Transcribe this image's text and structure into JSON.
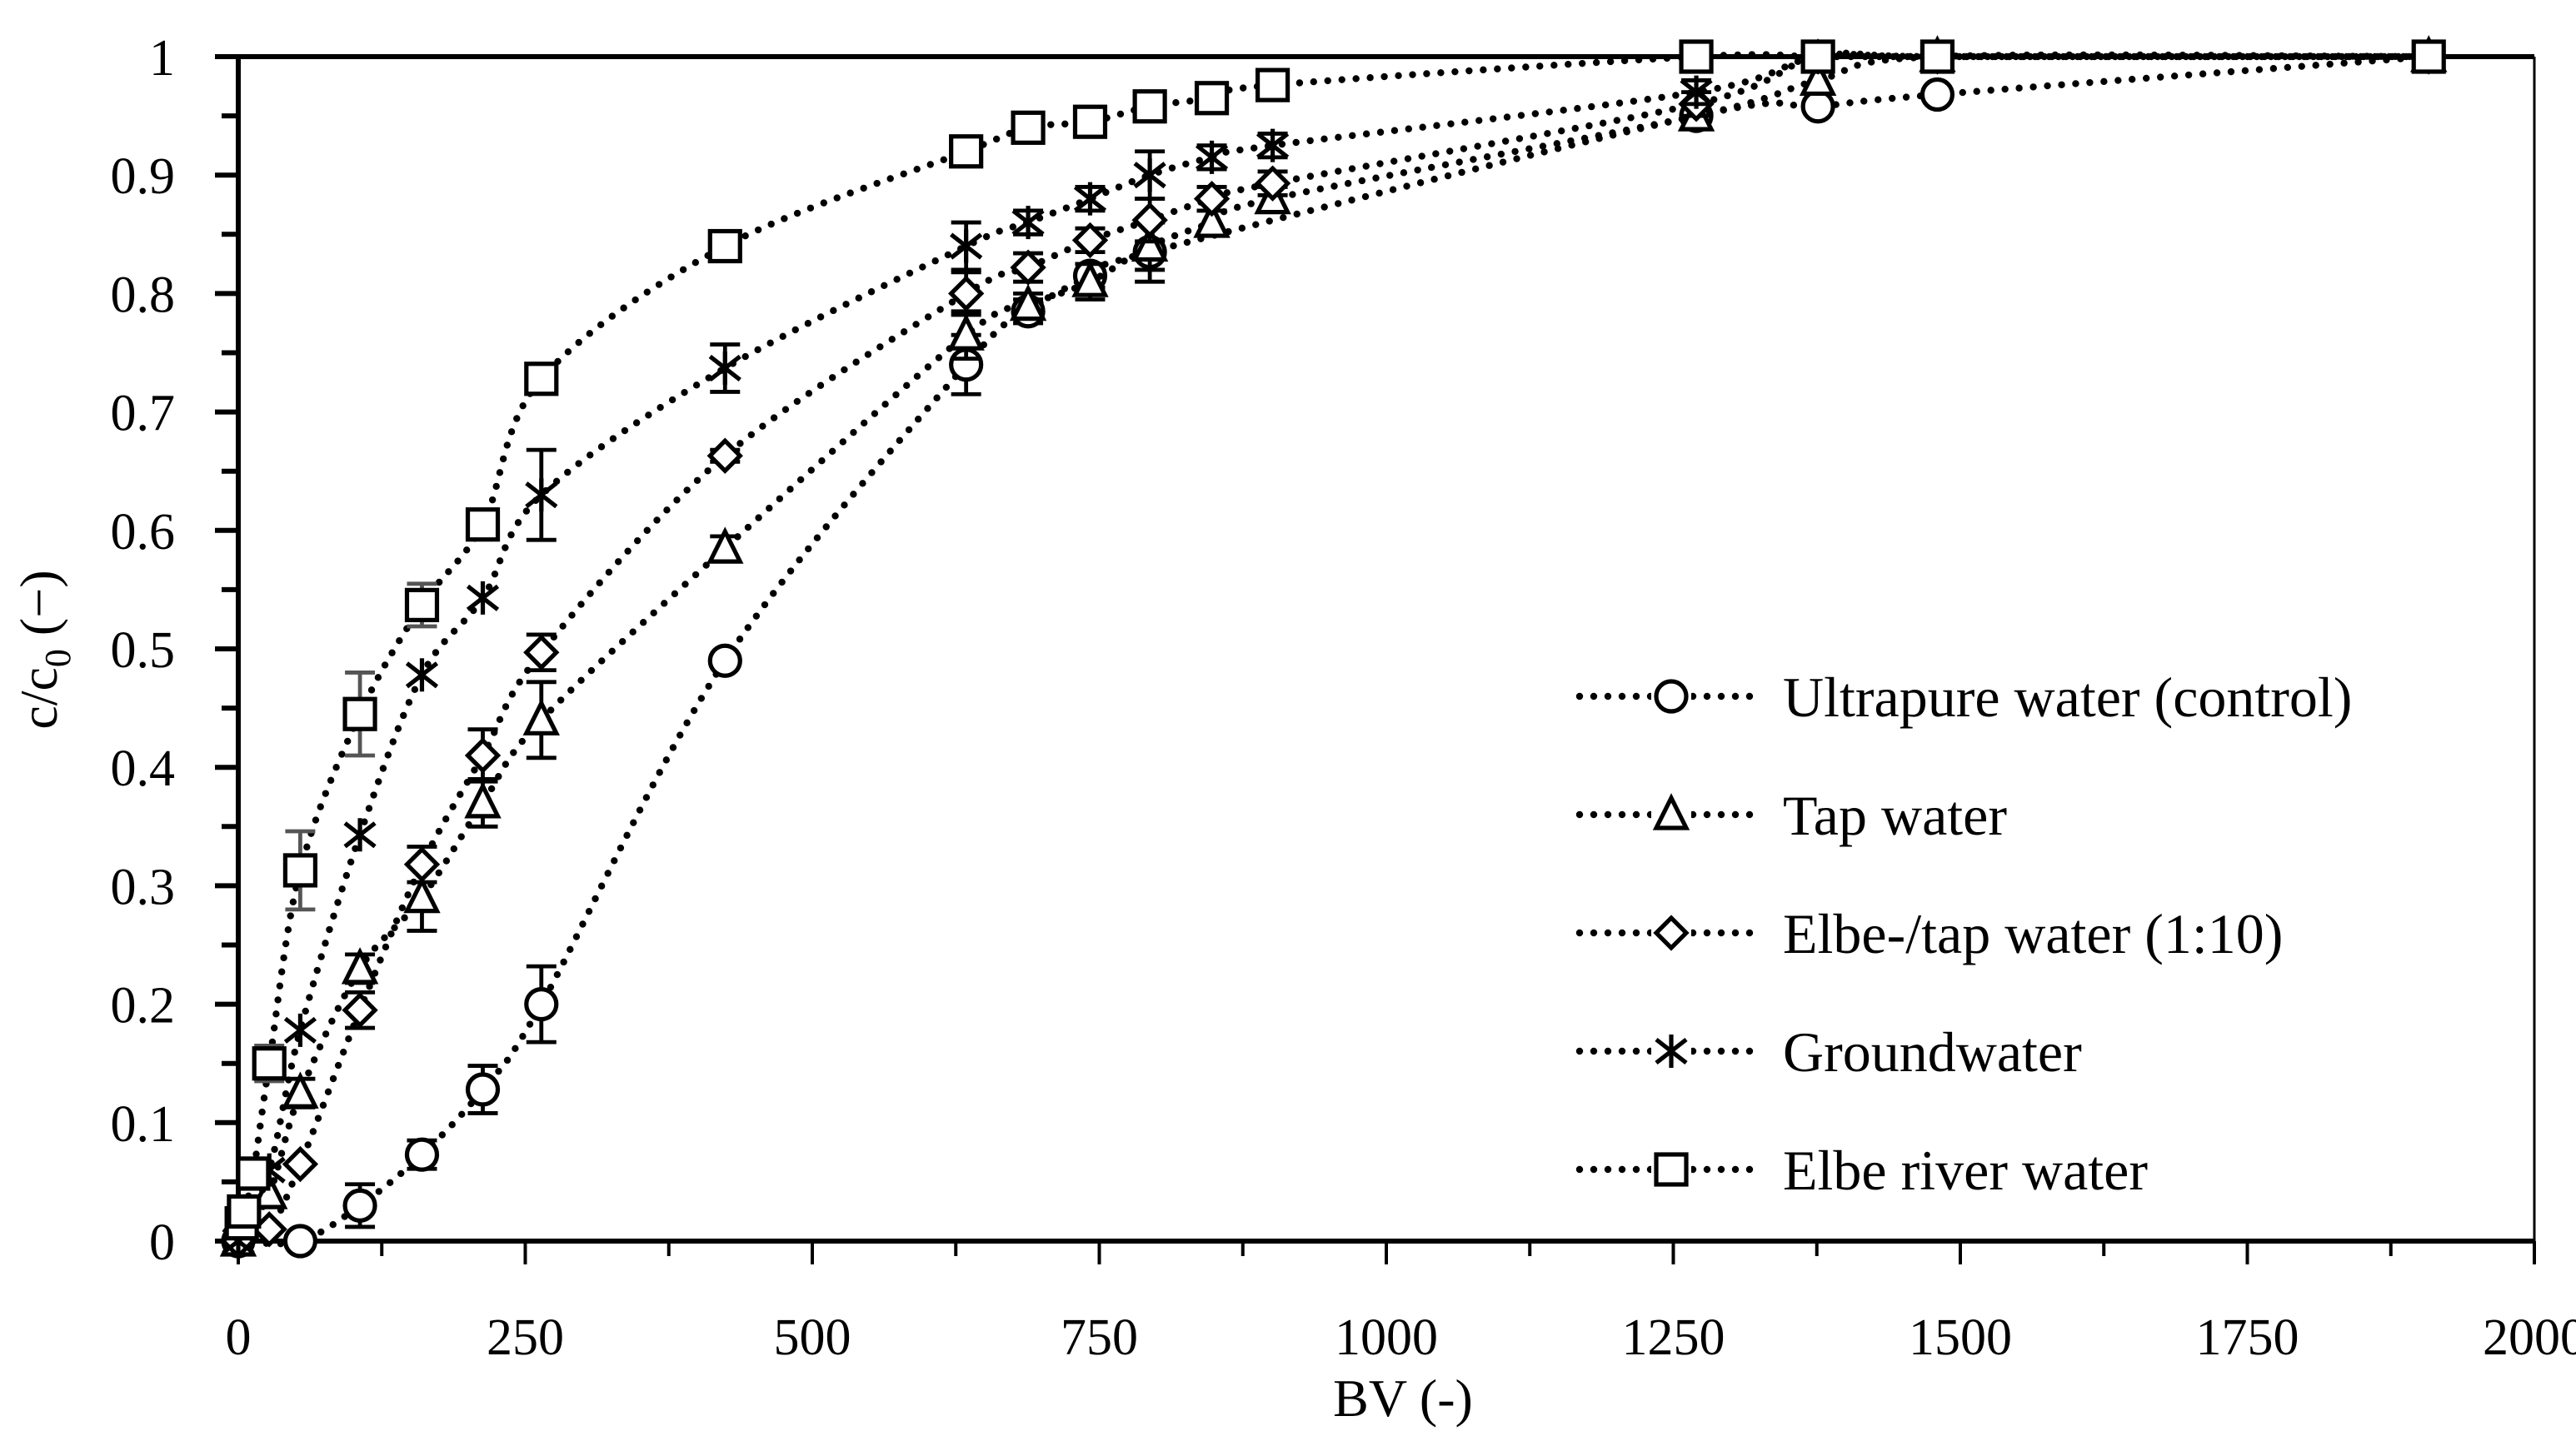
{
  "chart_data": {
    "type": "scatter",
    "title": "",
    "xlabel": "BV (-)",
    "ylabel": "c/c0 (−)",
    "ylabel_parts": {
      "main": "c/c",
      "subscript": "0",
      "suffix": " (−)"
    },
    "xlim": [
      0,
      2000
    ],
    "ylim": [
      0,
      1
    ],
    "x_ticks": [
      0,
      250,
      500,
      750,
      1000,
      1250,
      1500,
      1750,
      2000
    ],
    "x_tick_labels": [
      "0",
      "250",
      "500",
      "750",
      "1000",
      "1250",
      "1500",
      "1750",
      "2000"
    ],
    "y_ticks": [
      0,
      0.1,
      0.2,
      0.3,
      0.4,
      0.5,
      0.6,
      0.7,
      0.8,
      0.9,
      1
    ],
    "y_tick_labels": [
      "0",
      "0.1",
      "0.2",
      "0.3",
      "0.4",
      "0.5",
      "0.6",
      "0.7",
      "0.8",
      "0.9",
      "1"
    ],
    "grid": false,
    "legend_position": "lower right (inside plot)",
    "line_style": "dotted, black, with error bars",
    "series": [
      {
        "name": "Ultrapure water (control)",
        "marker": "circle",
        "x": [
          0,
          54,
          106,
          160,
          213,
          264,
          424,
          634,
          688,
          742,
          794,
          1270,
          1376,
          1480,
          1908
        ],
        "y": [
          0.0,
          0.0,
          0.03,
          0.073,
          0.128,
          0.2,
          0.49,
          0.74,
          0.785,
          0.815,
          0.835,
          0.95,
          0.958,
          0.968,
          1.0
        ],
        "err": [
          0,
          0,
          0.018,
          0.012,
          0.02,
          0.032,
          0,
          0.025,
          0.01,
          0.01,
          0.025,
          0.01,
          0.005,
          0.005,
          0
        ]
      },
      {
        "name": "Tap water",
        "marker": "triangle",
        "x": [
          0,
          27,
          54,
          106,
          160,
          213,
          264,
          424,
          634,
          688,
          742,
          794,
          848,
          901,
          1270,
          1376,
          1480,
          1908
        ],
        "y": [
          0.0,
          0.04,
          0.125,
          0.23,
          0.29,
          0.37,
          0.44,
          0.585,
          0.765,
          0.79,
          0.81,
          0.84,
          0.86,
          0.88,
          0.95,
          0.98,
          1.0,
          1.0
        ],
        "err": [
          0,
          0,
          0.012,
          0.012,
          0.028,
          0.02,
          0.032,
          0.01,
          0.02,
          0.01,
          0.015,
          0.02,
          0.01,
          0.01,
          0.01,
          0,
          0,
          0
        ]
      },
      {
        "name": "Elbe-/tap water (1:10)",
        "marker": "diamond",
        "x": [
          0,
          27,
          54,
          106,
          160,
          213,
          264,
          424,
          634,
          688,
          742,
          794,
          848,
          901,
          1270,
          1376,
          1480,
          1908
        ],
        "y": [
          0.0,
          0.01,
          0.065,
          0.195,
          0.318,
          0.41,
          0.497,
          0.663,
          0.8,
          0.822,
          0.845,
          0.862,
          0.88,
          0.893,
          0.96,
          1.0,
          1.0,
          1.0
        ],
        "err": [
          0,
          0,
          0,
          0.015,
          0.015,
          0.022,
          0.015,
          0.005,
          0.018,
          0.012,
          0.01,
          0.018,
          0.01,
          0.01,
          0.01,
          0,
          0,
          0
        ]
      },
      {
        "name": "Groundwater",
        "marker": "star",
        "x": [
          0,
          27,
          54,
          106,
          160,
          213,
          264,
          424,
          634,
          688,
          742,
          794,
          848,
          901,
          1270,
          1376,
          1480,
          1908
        ],
        "y": [
          0.0,
          0.06,
          0.178,
          0.343,
          0.478,
          0.543,
          0.63,
          0.737,
          0.84,
          0.86,
          0.88,
          0.9,
          0.915,
          0.925,
          0.97,
          1.0,
          1.0,
          1.0
        ],
        "err": [
          0,
          0,
          0,
          0,
          0,
          0,
          0.038,
          0.02,
          0.02,
          0.01,
          0.01,
          0.02,
          0.01,
          0.01,
          0.01,
          0,
          0,
          0
        ]
      },
      {
        "name": "Elbe river water",
        "marker": "square",
        "x": [
          3,
          5,
          13,
          27,
          54,
          106,
          160,
          213,
          264,
          424,
          634,
          688,
          742,
          794,
          848,
          901,
          1270,
          1376,
          1480,
          1908
        ],
        "y": [
          0.015,
          0.025,
          0.057,
          0.15,
          0.313,
          0.445,
          0.537,
          0.605,
          0.728,
          0.84,
          0.92,
          0.94,
          0.945,
          0.958,
          0.965,
          0.976,
          1.0,
          1.0,
          1.0,
          1.0
        ],
        "err": [
          0,
          0,
          0,
          0.015,
          0.033,
          0.035,
          0.018,
          0,
          0,
          0,
          0,
          0,
          0,
          0,
          0,
          0,
          0,
          0,
          0,
          0
        ]
      }
    ]
  },
  "colors": {
    "axis": "#000000",
    "marker_stroke": "#000000",
    "marker_fill": "#ffffff",
    "line": "#000000",
    "error_bar_alt": "#555555",
    "background": "#ffffff"
  }
}
